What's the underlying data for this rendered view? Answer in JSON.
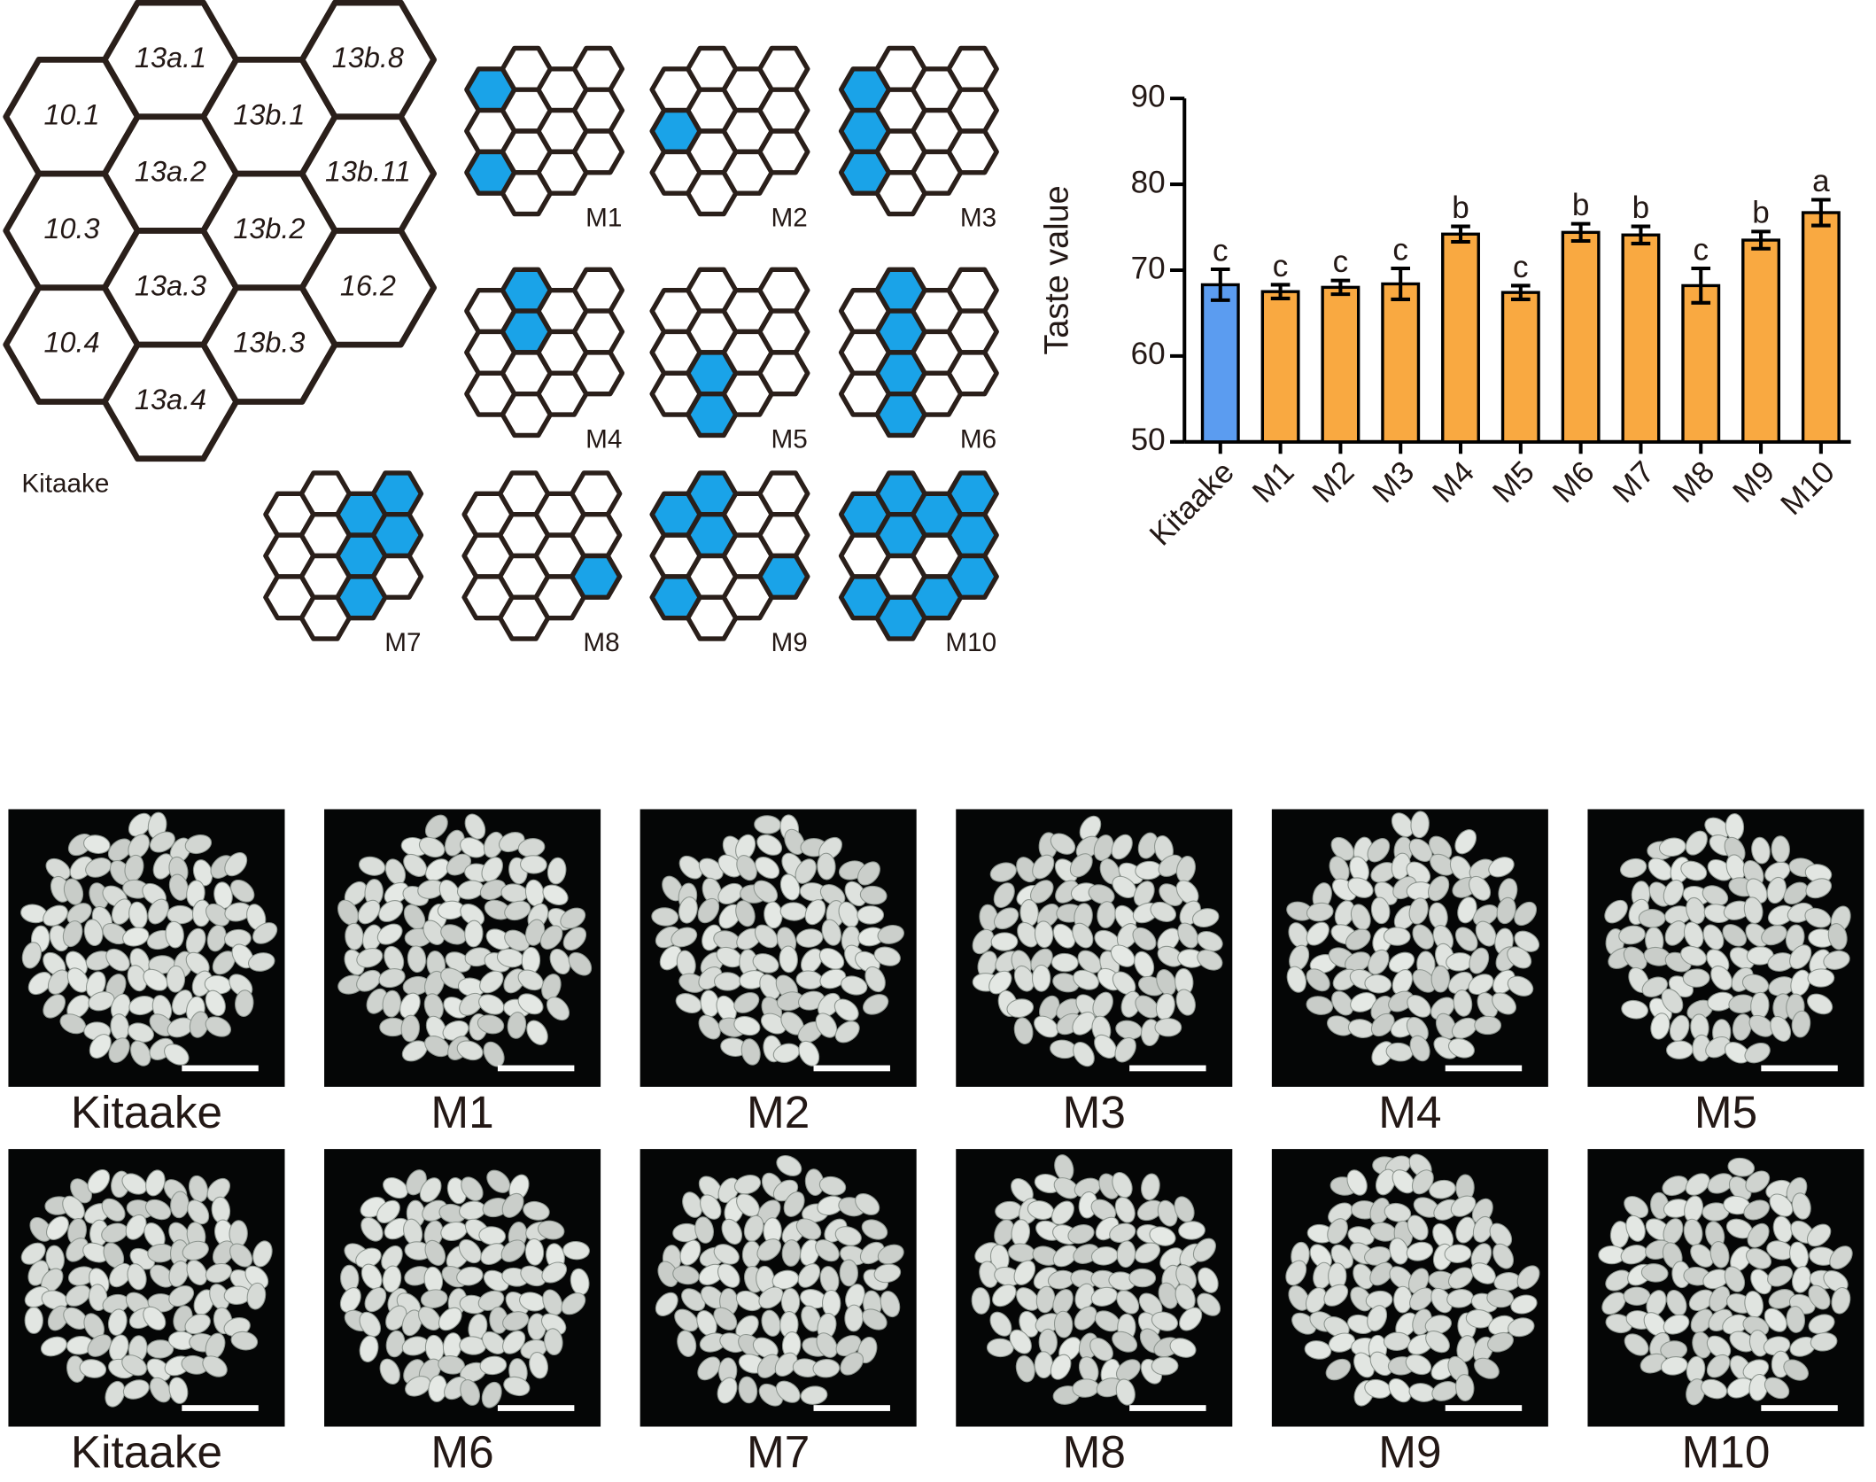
{
  "hex_diagram": {
    "label": "Kitaake",
    "cells": [
      "10.1",
      "10.3",
      "10.4",
      "13a.1",
      "13a.2",
      "13a.3",
      "13a.4",
      "13b.1",
      "13b.2",
      "13b.3",
      "13b.8",
      "13b.11",
      "16.2"
    ]
  },
  "mini_grids": [
    {
      "label": "M1",
      "filled": [
        0,
        2
      ]
    },
    {
      "label": "M2",
      "filled": [
        1
      ]
    },
    {
      "label": "M3",
      "filled": [
        0,
        1,
        2
      ]
    },
    {
      "label": "M4",
      "filled": [
        3,
        4
      ]
    },
    {
      "label": "M5",
      "filled": [
        5,
        6
      ]
    },
    {
      "label": "M6",
      "filled": [
        3,
        4,
        5,
        6
      ]
    },
    {
      "label": "M7",
      "filled": [
        7,
        8,
        9,
        10,
        11
      ]
    },
    {
      "label": "M8",
      "filled": [
        12
      ]
    },
    {
      "label": "M9",
      "filled": [
        0,
        2,
        3,
        4,
        12
      ]
    },
    {
      "label": "M10",
      "filled": [
        0,
        2,
        3,
        4,
        6,
        7,
        9,
        10,
        11,
        12
      ]
    }
  ],
  "chart_data": {
    "type": "bar",
    "y_label": "Taste value",
    "categories": [
      "Kitaake",
      "M1",
      "M2",
      "M3",
      "M4",
      "M5",
      "M6",
      "M7",
      "M8",
      "M9",
      "M10"
    ],
    "values": [
      68.3,
      67.5,
      68.0,
      68.4,
      74.2,
      67.4,
      74.4,
      74.1,
      68.2,
      73.5,
      76.7
    ],
    "errors": [
      1.8,
      0.8,
      0.8,
      1.8,
      0.9,
      0.8,
      1.0,
      1.0,
      2.0,
      1.0,
      1.5
    ],
    "letters": [
      "c",
      "c",
      "c",
      "c",
      "b",
      "c",
      "b",
      "b",
      "c",
      "b",
      "a"
    ],
    "colors": [
      "#5b9cf0",
      "#f9a941",
      "#f9a941",
      "#f9a941",
      "#f9a941",
      "#f9a941",
      "#f9a941",
      "#f9a941",
      "#f9a941",
      "#f9a941",
      "#f9a941"
    ],
    "ylim": [
      50,
      90
    ],
    "yticks": [
      50,
      60,
      70,
      80,
      90
    ]
  },
  "photos": {
    "labels": [
      "Kitaake",
      "M1",
      "M2",
      "M3",
      "M4",
      "M5",
      "Kitaake",
      "M6",
      "M7",
      "M8",
      "M9",
      "M10"
    ]
  }
}
